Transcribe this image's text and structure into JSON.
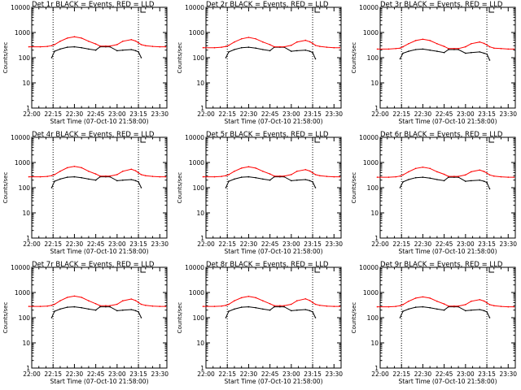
{
  "figure": {
    "x_axis_label": "Start Time (07-Oct-10 21:58:00)",
    "y_axis_label": "Counts/sec",
    "x_tick_labels": [
      "22:00",
      "22:15",
      "22:30",
      "22:45",
      "23:00",
      "23:15",
      "23:30"
    ],
    "y_tick_labels": [
      "1",
      "10",
      "100",
      "1000",
      "10000"
    ],
    "colors": {
      "events": "#000000",
      "lld": "#ff0000",
      "background": "#ffffff"
    }
  },
  "chart_data": [
    {
      "type": "line",
      "title": "Det 1r  BLACK = Events, RED = LLD",
      "xlabel": "Start Time (07-Oct-10 21:58:00)",
      "ylabel": "Counts/sec",
      "xlim": [
        "22:00",
        "23:35"
      ],
      "ylim": [
        1,
        10000
      ],
      "y_scale": "log",
      "vertical_markers": [
        "22:15",
        "23:15"
      ],
      "x": [
        "21:58",
        "22:06",
        "22:11",
        "22:14",
        "22:16",
        "22:20",
        "22:25",
        "22:30",
        "22:35",
        "22:40",
        "22:45",
        "22:48",
        "22:52",
        "22:55",
        "23:00",
        "23:04",
        "23:10",
        "23:13",
        "23:15",
        "23:17",
        "23:20",
        "23:25",
        "23:30",
        "23:34"
      ],
      "series": [
        {
          "name": "Events",
          "color": "#000000",
          "values": [
            null,
            null,
            null,
            100,
            180,
            220,
            260,
            270,
            250,
            220,
            200,
            270,
            270,
            270,
            190,
            200,
            210,
            190,
            170,
            100,
            null,
            null,
            null,
            null
          ]
        },
        {
          "name": "LLD",
          "color": "#ff0000",
          "values": [
            270,
            270,
            280,
            300,
            330,
            450,
            600,
            680,
            600,
            450,
            350,
            290,
            290,
            290,
            330,
            450,
            520,
            460,
            390,
            330,
            300,
            280,
            270,
            270
          ]
        }
      ]
    },
    {
      "type": "line",
      "title": "Det 2r  BLACK = Events, RED = LLD",
      "xlabel": "Start Time (07-Oct-10 21:58:00)",
      "ylabel": "Counts/sec",
      "xlim": [
        "22:00",
        "23:35"
      ],
      "ylim": [
        1,
        10000
      ],
      "y_scale": "log",
      "vertical_markers": [
        "22:15",
        "23:15"
      ],
      "x": [
        "21:58",
        "22:06",
        "22:11",
        "22:14",
        "22:16",
        "22:20",
        "22:25",
        "22:30",
        "22:35",
        "22:40",
        "22:45",
        "22:48",
        "22:52",
        "22:55",
        "23:00",
        "23:04",
        "23:10",
        "23:13",
        "23:15",
        "23:17",
        "23:20",
        "23:25",
        "23:30",
        "23:34"
      ],
      "series": [
        {
          "name": "Events",
          "color": "#000000",
          "values": [
            null,
            null,
            null,
            100,
            170,
            210,
            250,
            260,
            240,
            210,
            190,
            260,
            260,
            260,
            180,
            190,
            200,
            180,
            160,
            90,
            null,
            null,
            null,
            null
          ]
        },
        {
          "name": "LLD",
          "color": "#ff0000",
          "values": [
            250,
            250,
            260,
            280,
            310,
            420,
            560,
            640,
            560,
            420,
            330,
            270,
            270,
            270,
            310,
            420,
            490,
            430,
            370,
            310,
            280,
            260,
            250,
            250
          ]
        }
      ]
    },
    {
      "type": "line",
      "title": "Det 3r  BLACK = Events, RED = LLD",
      "xlabel": "Start Time (07-Oct-10 21:58:00)",
      "ylabel": "Counts/sec",
      "xlim": [
        "22:00",
        "23:35"
      ],
      "ylim": [
        1,
        10000
      ],
      "y_scale": "log",
      "vertical_markers": [
        "22:15",
        "23:15"
      ],
      "x": [
        "21:58",
        "22:06",
        "22:11",
        "22:14",
        "22:16",
        "22:20",
        "22:25",
        "22:30",
        "22:35",
        "22:40",
        "22:45",
        "22:48",
        "22:52",
        "22:55",
        "23:00",
        "23:04",
        "23:10",
        "23:13",
        "23:15",
        "23:17",
        "23:20",
        "23:25",
        "23:30",
        "23:34"
      ],
      "series": [
        {
          "name": "Events",
          "color": "#000000",
          "values": [
            null,
            null,
            null,
            90,
            150,
            180,
            210,
            220,
            200,
            180,
            160,
            210,
            210,
            210,
            150,
            160,
            170,
            150,
            140,
            80,
            null,
            null,
            null,
            null
          ]
        },
        {
          "name": "LLD",
          "color": "#ff0000",
          "values": [
            220,
            220,
            230,
            240,
            270,
            360,
            480,
            540,
            480,
            360,
            280,
            230,
            230,
            230,
            270,
            360,
            420,
            370,
            320,
            270,
            240,
            230,
            220,
            220
          ]
        }
      ]
    },
    {
      "type": "line",
      "title": "Det 4r  BLACK = Events, RED = LLD",
      "xlabel": "Start Time (07-Oct-10 21:58:00)",
      "ylabel": "Counts/sec",
      "xlim": [
        "22:00",
        "23:35"
      ],
      "ylim": [
        1,
        10000
      ],
      "y_scale": "log",
      "vertical_markers": [
        "22:15",
        "23:15"
      ],
      "x": [
        "21:58",
        "22:06",
        "22:11",
        "22:14",
        "22:16",
        "22:20",
        "22:25",
        "22:30",
        "22:35",
        "22:40",
        "22:45",
        "22:48",
        "22:52",
        "22:55",
        "23:00",
        "23:04",
        "23:10",
        "23:13",
        "23:15",
        "23:17",
        "23:20",
        "23:25",
        "23:30",
        "23:34"
      ],
      "series": [
        {
          "name": "Events",
          "color": "#000000",
          "values": [
            null,
            null,
            null,
            100,
            180,
            220,
            260,
            270,
            250,
            220,
            200,
            270,
            270,
            270,
            190,
            200,
            210,
            190,
            170,
            100,
            null,
            null,
            null,
            null
          ]
        },
        {
          "name": "LLD",
          "color": "#ff0000",
          "values": [
            270,
            270,
            280,
            300,
            330,
            450,
            620,
            700,
            620,
            450,
            350,
            290,
            290,
            290,
            330,
            450,
            540,
            470,
            390,
            330,
            300,
            280,
            270,
            270
          ]
        }
      ]
    },
    {
      "type": "line",
      "title": "Det 5r  BLACK = Events, RED = LLD",
      "xlabel": "Start Time (07-Oct-10 21:58:00)",
      "ylabel": "Counts/sec",
      "xlim": [
        "22:00",
        "23:35"
      ],
      "ylim": [
        1,
        10000
      ],
      "y_scale": "log",
      "vertical_markers": [
        "22:15",
        "23:15"
      ],
      "x": [
        "21:58",
        "22:06",
        "22:11",
        "22:14",
        "22:16",
        "22:20",
        "22:25",
        "22:30",
        "22:35",
        "22:40",
        "22:45",
        "22:48",
        "22:52",
        "22:55",
        "23:00",
        "23:04",
        "23:10",
        "23:13",
        "23:15",
        "23:17",
        "23:20",
        "23:25",
        "23:30",
        "23:34"
      ],
      "series": [
        {
          "name": "Events",
          "color": "#000000",
          "values": [
            null,
            null,
            null,
            100,
            180,
            220,
            260,
            270,
            250,
            220,
            200,
            270,
            270,
            270,
            190,
            200,
            210,
            190,
            170,
            100,
            null,
            null,
            null,
            null
          ]
        },
        {
          "name": "LLD",
          "color": "#ff0000",
          "values": [
            270,
            270,
            280,
            300,
            330,
            450,
            600,
            680,
            600,
            450,
            350,
            290,
            290,
            290,
            330,
            450,
            520,
            460,
            390,
            330,
            300,
            280,
            270,
            270
          ]
        }
      ]
    },
    {
      "type": "line",
      "title": "Det 6r  BLACK = Events, RED = LLD",
      "xlabel": "Start Time (07-Oct-10 21:58:00)",
      "ylabel": "Counts/sec",
      "xlim": [
        "22:00",
        "23:35"
      ],
      "ylim": [
        1,
        10000
      ],
      "y_scale": "log",
      "vertical_markers": [
        "22:15",
        "23:15"
      ],
      "x": [
        "21:58",
        "22:06",
        "22:11",
        "22:14",
        "22:16",
        "22:20",
        "22:25",
        "22:30",
        "22:35",
        "22:40",
        "22:45",
        "22:48",
        "22:52",
        "22:55",
        "23:00",
        "23:04",
        "23:10",
        "23:13",
        "23:15",
        "23:17",
        "23:20",
        "23:25",
        "23:30",
        "23:34"
      ],
      "series": [
        {
          "name": "Events",
          "color": "#000000",
          "values": [
            null,
            null,
            null,
            100,
            170,
            210,
            250,
            260,
            240,
            210,
            190,
            260,
            260,
            260,
            180,
            190,
            200,
            180,
            160,
            90,
            null,
            null,
            null,
            null
          ]
        },
        {
          "name": "LLD",
          "color": "#ff0000",
          "values": [
            260,
            260,
            270,
            290,
            320,
            430,
            580,
            650,
            580,
            430,
            340,
            280,
            280,
            280,
            320,
            430,
            500,
            440,
            380,
            320,
            290,
            270,
            260,
            260
          ]
        }
      ]
    },
    {
      "type": "line",
      "title": "Det 7r  BLACK = Events, RED = LLD",
      "xlabel": "Start Time (07-Oct-10 21:58:00)",
      "ylabel": "Counts/sec",
      "xlim": [
        "22:00",
        "23:35"
      ],
      "ylim": [
        1,
        10000
      ],
      "y_scale": "log",
      "vertical_markers": [
        "22:15",
        "23:15"
      ],
      "x": [
        "21:58",
        "22:06",
        "22:11",
        "22:14",
        "22:16",
        "22:20",
        "22:25",
        "22:30",
        "22:35",
        "22:40",
        "22:45",
        "22:48",
        "22:52",
        "22:55",
        "23:00",
        "23:04",
        "23:10",
        "23:13",
        "23:15",
        "23:17",
        "23:20",
        "23:25",
        "23:30",
        "23:34"
      ],
      "series": [
        {
          "name": "Events",
          "color": "#000000",
          "values": [
            null,
            null,
            null,
            100,
            180,
            220,
            260,
            270,
            250,
            220,
            200,
            270,
            270,
            270,
            190,
            200,
            210,
            190,
            170,
            100,
            null,
            null,
            null,
            null
          ]
        },
        {
          "name": "LLD",
          "color": "#ff0000",
          "values": [
            280,
            280,
            290,
            310,
            340,
            470,
            640,
            720,
            640,
            470,
            360,
            300,
            300,
            300,
            340,
            470,
            550,
            480,
            400,
            340,
            310,
            290,
            280,
            280
          ]
        }
      ]
    },
    {
      "type": "line",
      "title": "Det 8r  BLACK = Events, RED = LLD",
      "xlabel": "Start Time (07-Oct-10 21:58:00)",
      "ylabel": "Counts/sec",
      "xlim": [
        "22:00",
        "23:35"
      ],
      "ylim": [
        1,
        10000
      ],
      "y_scale": "log",
      "vertical_markers": [
        "22:15",
        "23:15"
      ],
      "x": [
        "21:58",
        "22:06",
        "22:11",
        "22:14",
        "22:16",
        "22:20",
        "22:25",
        "22:30",
        "22:35",
        "22:40",
        "22:45",
        "22:48",
        "22:52",
        "22:55",
        "23:00",
        "23:04",
        "23:10",
        "23:13",
        "23:15",
        "23:17",
        "23:20",
        "23:25",
        "23:30",
        "23:34"
      ],
      "series": [
        {
          "name": "Events",
          "color": "#000000",
          "values": [
            null,
            null,
            null,
            100,
            180,
            220,
            260,
            270,
            250,
            220,
            200,
            270,
            270,
            270,
            190,
            200,
            210,
            190,
            170,
            100,
            null,
            null,
            null,
            null
          ]
        },
        {
          "name": "LLD",
          "color": "#ff0000",
          "values": [
            280,
            280,
            290,
            310,
            340,
            470,
            620,
            700,
            620,
            470,
            360,
            300,
            300,
            300,
            340,
            470,
            560,
            480,
            400,
            340,
            310,
            290,
            280,
            280
          ]
        }
      ]
    },
    {
      "type": "line",
      "title": "Det 9r  BLACK = Events, RED = LLD",
      "xlabel": "Start Time (07-Oct-10 21:58:00)",
      "ylabel": "Counts/sec",
      "xlim": [
        "22:00",
        "23:35"
      ],
      "ylim": [
        1,
        10000
      ],
      "y_scale": "log",
      "vertical_markers": [
        "22:15",
        "23:15"
      ],
      "x": [
        "21:58",
        "22:06",
        "22:11",
        "22:14",
        "22:16",
        "22:20",
        "22:25",
        "22:30",
        "22:35",
        "22:40",
        "22:45",
        "22:48",
        "22:52",
        "22:55",
        "23:00",
        "23:04",
        "23:10",
        "23:13",
        "23:15",
        "23:17",
        "23:20",
        "23:25",
        "23:30",
        "23:34"
      ],
      "series": [
        {
          "name": "Events",
          "color": "#000000",
          "values": [
            null,
            null,
            null,
            100,
            180,
            220,
            260,
            270,
            250,
            220,
            200,
            270,
            270,
            270,
            190,
            200,
            210,
            190,
            170,
            100,
            null,
            null,
            null,
            null
          ]
        },
        {
          "name": "LLD",
          "color": "#ff0000",
          "values": [
            270,
            270,
            280,
            300,
            330,
            450,
            600,
            670,
            600,
            450,
            350,
            290,
            290,
            290,
            330,
            450,
            520,
            460,
            390,
            330,
            300,
            280,
            270,
            270
          ]
        }
      ]
    }
  ]
}
